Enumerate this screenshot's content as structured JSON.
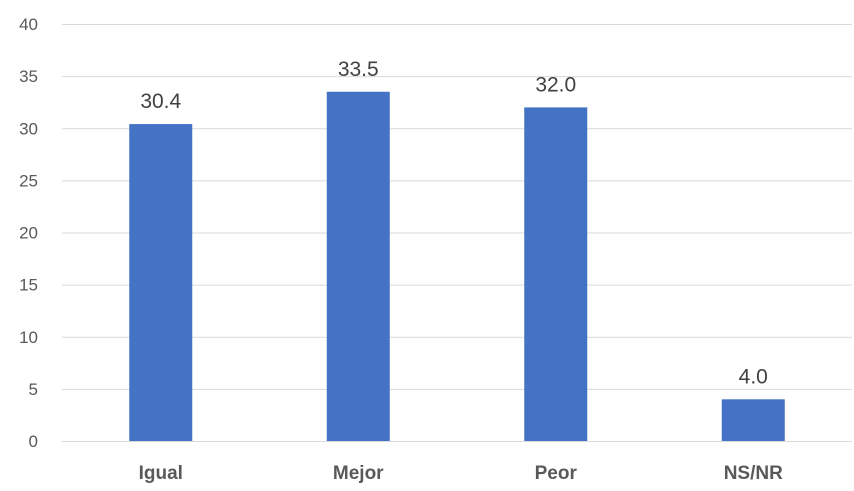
{
  "chart_data": {
    "type": "bar",
    "categories": [
      "Igual",
      "Mejor",
      "Peor",
      "NS/NR"
    ],
    "values": [
      30.4,
      33.5,
      32.0,
      4.0
    ],
    "data_labels": [
      "30.4",
      "33.5",
      "32.0",
      "4.0"
    ],
    "ylim": [
      0,
      40
    ],
    "yticks": [
      0,
      5,
      10,
      15,
      20,
      25,
      30,
      35,
      40
    ],
    "ytick_labels": [
      "0",
      "5",
      "10",
      "15",
      "20",
      "25",
      "30",
      "35",
      "40"
    ],
    "grid": true,
    "legend": "none",
    "title": "",
    "xlabel": "",
    "ylabel": "",
    "bar_color": "#4472c4"
  }
}
